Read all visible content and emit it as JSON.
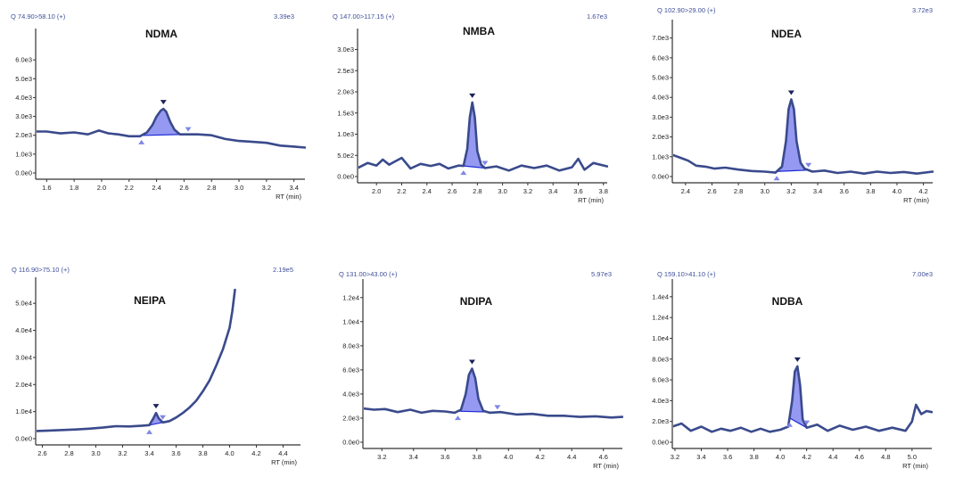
{
  "chart_data": [
    {
      "type": "line",
      "title": "NDMA",
      "header": "Q 74.90>58.10 (+)",
      "max_intensity": "3.39e3",
      "xlabel": "RT (min)",
      "xlim": [
        1.52,
        3.48
      ],
      "ylim": [
        0,
        7000
      ],
      "x_ticks": [
        1.6,
        1.8,
        2.0,
        2.2,
        2.4,
        2.6,
        2.8,
        3.0,
        3.2,
        3.4
      ],
      "y_ticks": [
        0,
        1000,
        2000,
        3000,
        4000,
        5000,
        6000
      ],
      "y_tick_labels": [
        "0.0e0",
        "1.0e3",
        "2.0e3",
        "3.0e3",
        "4.0e3",
        "5.0e3",
        "6.0e3"
      ],
      "peak": {
        "apex": 2.45,
        "start": 2.29,
        "end": 2.63
      },
      "series": [
        {
          "name": "trace",
          "x": [
            1.52,
            1.6,
            1.7,
            1.8,
            1.9,
            1.98,
            2.05,
            2.12,
            2.2,
            2.28,
            2.33,
            2.37,
            2.4,
            2.43,
            2.45,
            2.47,
            2.5,
            2.53,
            2.57,
            2.63,
            2.7,
            2.8,
            2.9,
            3.0,
            3.1,
            3.2,
            3.3,
            3.4,
            3.48
          ],
          "y": [
            2200,
            2200,
            2100,
            2150,
            2050,
            2250,
            2100,
            2050,
            1950,
            1950,
            2150,
            2550,
            3000,
            3300,
            3400,
            3250,
            2700,
            2300,
            2050,
            2050,
            2050,
            2000,
            1800,
            1700,
            1650,
            1600,
            1450,
            1400,
            1350
          ]
        }
      ]
    },
    {
      "type": "line",
      "title": "NMBA",
      "header": "Q 147.00>117.15 (+)",
      "max_intensity": "1.67e3",
      "xlabel": "RT (min)",
      "xlim": [
        1.85,
        3.83
      ],
      "ylim": [
        0,
        3200
      ],
      "x_ticks": [
        2.0,
        2.2,
        2.4,
        2.6,
        2.8,
        3.0,
        3.2,
        3.4,
        3.6,
        3.8
      ],
      "y_ticks": [
        0,
        500,
        1000,
        1500,
        2000,
        2500,
        3000
      ],
      "y_tick_labels": [
        "0.0e0",
        "5.0e2",
        "1.0e3",
        "1.5e3",
        "2.0e3",
        "2.5e3",
        "3.0e3"
      ],
      "peak": {
        "apex": 2.76,
        "start": 2.69,
        "end": 2.86
      },
      "series": [
        {
          "name": "trace",
          "x": [
            1.85,
            1.93,
            2.0,
            2.05,
            2.1,
            2.15,
            2.2,
            2.27,
            2.35,
            2.43,
            2.5,
            2.57,
            2.65,
            2.69,
            2.72,
            2.74,
            2.76,
            2.78,
            2.8,
            2.83,
            2.86,
            2.95,
            3.05,
            3.15,
            3.25,
            3.35,
            3.45,
            3.55,
            3.6,
            3.65,
            3.72,
            3.83
          ],
          "y": [
            200,
            320,
            260,
            400,
            280,
            360,
            440,
            190,
            300,
            250,
            300,
            190,
            260,
            250,
            650,
            1400,
            1750,
            1400,
            600,
            280,
            200,
            240,
            140,
            260,
            200,
            260,
            140,
            220,
            420,
            160,
            320,
            240
          ]
        }
      ]
    },
    {
      "type": "line",
      "title": "NDEA",
      "header": "Q 102.90>29.00 (+)",
      "max_intensity": "3.72e3",
      "xlabel": "RT (min)",
      "xlim": [
        2.3,
        4.27
      ],
      "ylim": [
        0,
        7300
      ],
      "x_ticks": [
        2.4,
        2.6,
        2.8,
        3.0,
        3.2,
        3.4,
        3.6,
        3.8,
        4.0,
        4.2
      ],
      "y_ticks": [
        0,
        1000,
        2000,
        3000,
        4000,
        5000,
        6000,
        7000
      ],
      "y_tick_labels": [
        "0.0e0",
        "1.0e3",
        "2.0e3",
        "3.0e3",
        "4.0e3",
        "5.0e3",
        "6.0e3",
        "7.0e3"
      ],
      "peak": {
        "apex": 3.2,
        "start": 3.09,
        "end": 3.33
      },
      "series": [
        {
          "name": "trace",
          "x": [
            2.3,
            2.36,
            2.42,
            2.48,
            2.55,
            2.62,
            2.7,
            2.8,
            2.9,
            3.0,
            3.08,
            3.13,
            3.16,
            3.18,
            3.2,
            3.22,
            3.24,
            3.27,
            3.3,
            3.36,
            3.45,
            3.55,
            3.65,
            3.75,
            3.85,
            3.95,
            4.05,
            4.15,
            4.27
          ],
          "y": [
            1100,
            950,
            800,
            550,
            500,
            400,
            450,
            350,
            280,
            250,
            200,
            500,
            1800,
            3400,
            3900,
            3400,
            1800,
            700,
            400,
            250,
            300,
            180,
            250,
            150,
            250,
            180,
            230,
            150,
            250
          ]
        }
      ]
    },
    {
      "type": "line",
      "title": "NEIPA",
      "header": "Q 116.90>75.10 (+)",
      "max_intensity": "2.19e5",
      "xlabel": "RT (min)",
      "xlim": [
        2.55,
        4.53
      ],
      "ylim": [
        0,
        55000
      ],
      "x_ticks": [
        2.6,
        2.8,
        3.0,
        3.2,
        3.4,
        3.6,
        3.8,
        4.0,
        4.2,
        4.4
      ],
      "y_ticks": [
        0,
        10000,
        20000,
        30000,
        40000,
        50000
      ],
      "y_tick_labels": [
        "0.0e0",
        "1.0e4",
        "2.0e4",
        "3.0e4",
        "4.0e4",
        "5.0e4"
      ],
      "peak": {
        "apex": 3.45,
        "start": 3.4,
        "end": 3.5
      },
      "series": [
        {
          "name": "trace",
          "x": [
            2.55,
            2.65,
            2.75,
            2.85,
            2.95,
            3.05,
            3.15,
            3.25,
            3.35,
            3.4,
            3.43,
            3.45,
            3.47,
            3.5,
            3.55,
            3.6,
            3.65,
            3.7,
            3.75,
            3.8,
            3.85,
            3.9,
            3.95,
            4.0,
            4.02,
            4.04
          ],
          "y": [
            2800,
            3000,
            3200,
            3400,
            3700,
            4100,
            4600,
            4500,
            4800,
            5000,
            7500,
            9500,
            7500,
            6000,
            6500,
            7800,
            9500,
            11500,
            14000,
            17500,
            21500,
            27000,
            33000,
            41000,
            47000,
            55000
          ]
        }
      ]
    },
    {
      "type": "line",
      "title": "NDIPA",
      "header": "Q 131.00>43.00 (+)",
      "max_intensity": "5.97e3",
      "xlabel": "RT (min)",
      "xlim": [
        3.08,
        4.72
      ],
      "ylim": [
        0,
        12500
      ],
      "x_ticks": [
        3.2,
        3.4,
        3.6,
        3.8,
        4.0,
        4.2,
        4.4,
        4.6
      ],
      "y_ticks": [
        0,
        2000,
        4000,
        6000,
        8000,
        10000,
        12000
      ],
      "y_tick_labels": [
        "0.0e0",
        "2.0e3",
        "4.0e3",
        "6.0e3",
        "8.0e3",
        "1.0e4",
        "1.2e4"
      ],
      "peak": {
        "apex": 3.77,
        "start": 3.68,
        "end": 3.93
      },
      "series": [
        {
          "name": "trace",
          "x": [
            3.08,
            3.15,
            3.22,
            3.3,
            3.38,
            3.45,
            3.52,
            3.6,
            3.66,
            3.7,
            3.73,
            3.75,
            3.77,
            3.79,
            3.81,
            3.84,
            3.88,
            3.95,
            4.05,
            4.15,
            4.25,
            4.35,
            4.45,
            4.55,
            4.65,
            4.72
          ],
          "y": [
            2800,
            2700,
            2750,
            2500,
            2700,
            2450,
            2600,
            2550,
            2450,
            2700,
            4000,
            5600,
            6100,
            5300,
            3600,
            2600,
            2450,
            2500,
            2300,
            2350,
            2200,
            2200,
            2100,
            2150,
            2050,
            2100
          ]
        }
      ]
    },
    {
      "type": "line",
      "title": "NDBA",
      "header": "Q 159.10>41.10 (+)",
      "max_intensity": "7.00e3",
      "xlabel": "RT (min)",
      "xlim": [
        3.18,
        5.15
      ],
      "ylim": [
        0,
        14500
      ],
      "x_ticks": [
        3.2,
        3.4,
        3.6,
        3.8,
        4.0,
        4.2,
        4.4,
        4.6,
        4.8,
        5.0
      ],
      "y_ticks": [
        0,
        2000,
        4000,
        6000,
        8000,
        10000,
        12000,
        14000
      ],
      "y_tick_labels": [
        "0.0e0",
        "2.0e3",
        "4.0e3",
        "6.0e3",
        "8.0e3",
        "1.0e4",
        "1.2e4",
        "1.4e4"
      ],
      "peak": {
        "apex": 4.13,
        "start": 4.07,
        "end": 4.2
      },
      "series": [
        {
          "name": "trace",
          "x": [
            3.18,
            3.25,
            3.32,
            3.4,
            3.48,
            3.55,
            3.62,
            3.7,
            3.78,
            3.85,
            3.92,
            4.0,
            4.06,
            4.09,
            4.11,
            4.13,
            4.15,
            4.17,
            4.2,
            4.28,
            4.36,
            4.45,
            4.55,
            4.65,
            4.75,
            4.85,
            4.95,
            5.0,
            5.03,
            5.07,
            5.11,
            5.15
          ],
          "y": [
            1500,
            1800,
            1100,
            1500,
            1000,
            1300,
            1100,
            1400,
            1000,
            1300,
            1000,
            1200,
            1500,
            4000,
            6800,
            7300,
            5500,
            2200,
            1400,
            1700,
            1100,
            1600,
            1200,
            1500,
            1100,
            1400,
            1100,
            2000,
            3600,
            2700,
            3000,
            2900
          ]
        }
      ]
    }
  ]
}
